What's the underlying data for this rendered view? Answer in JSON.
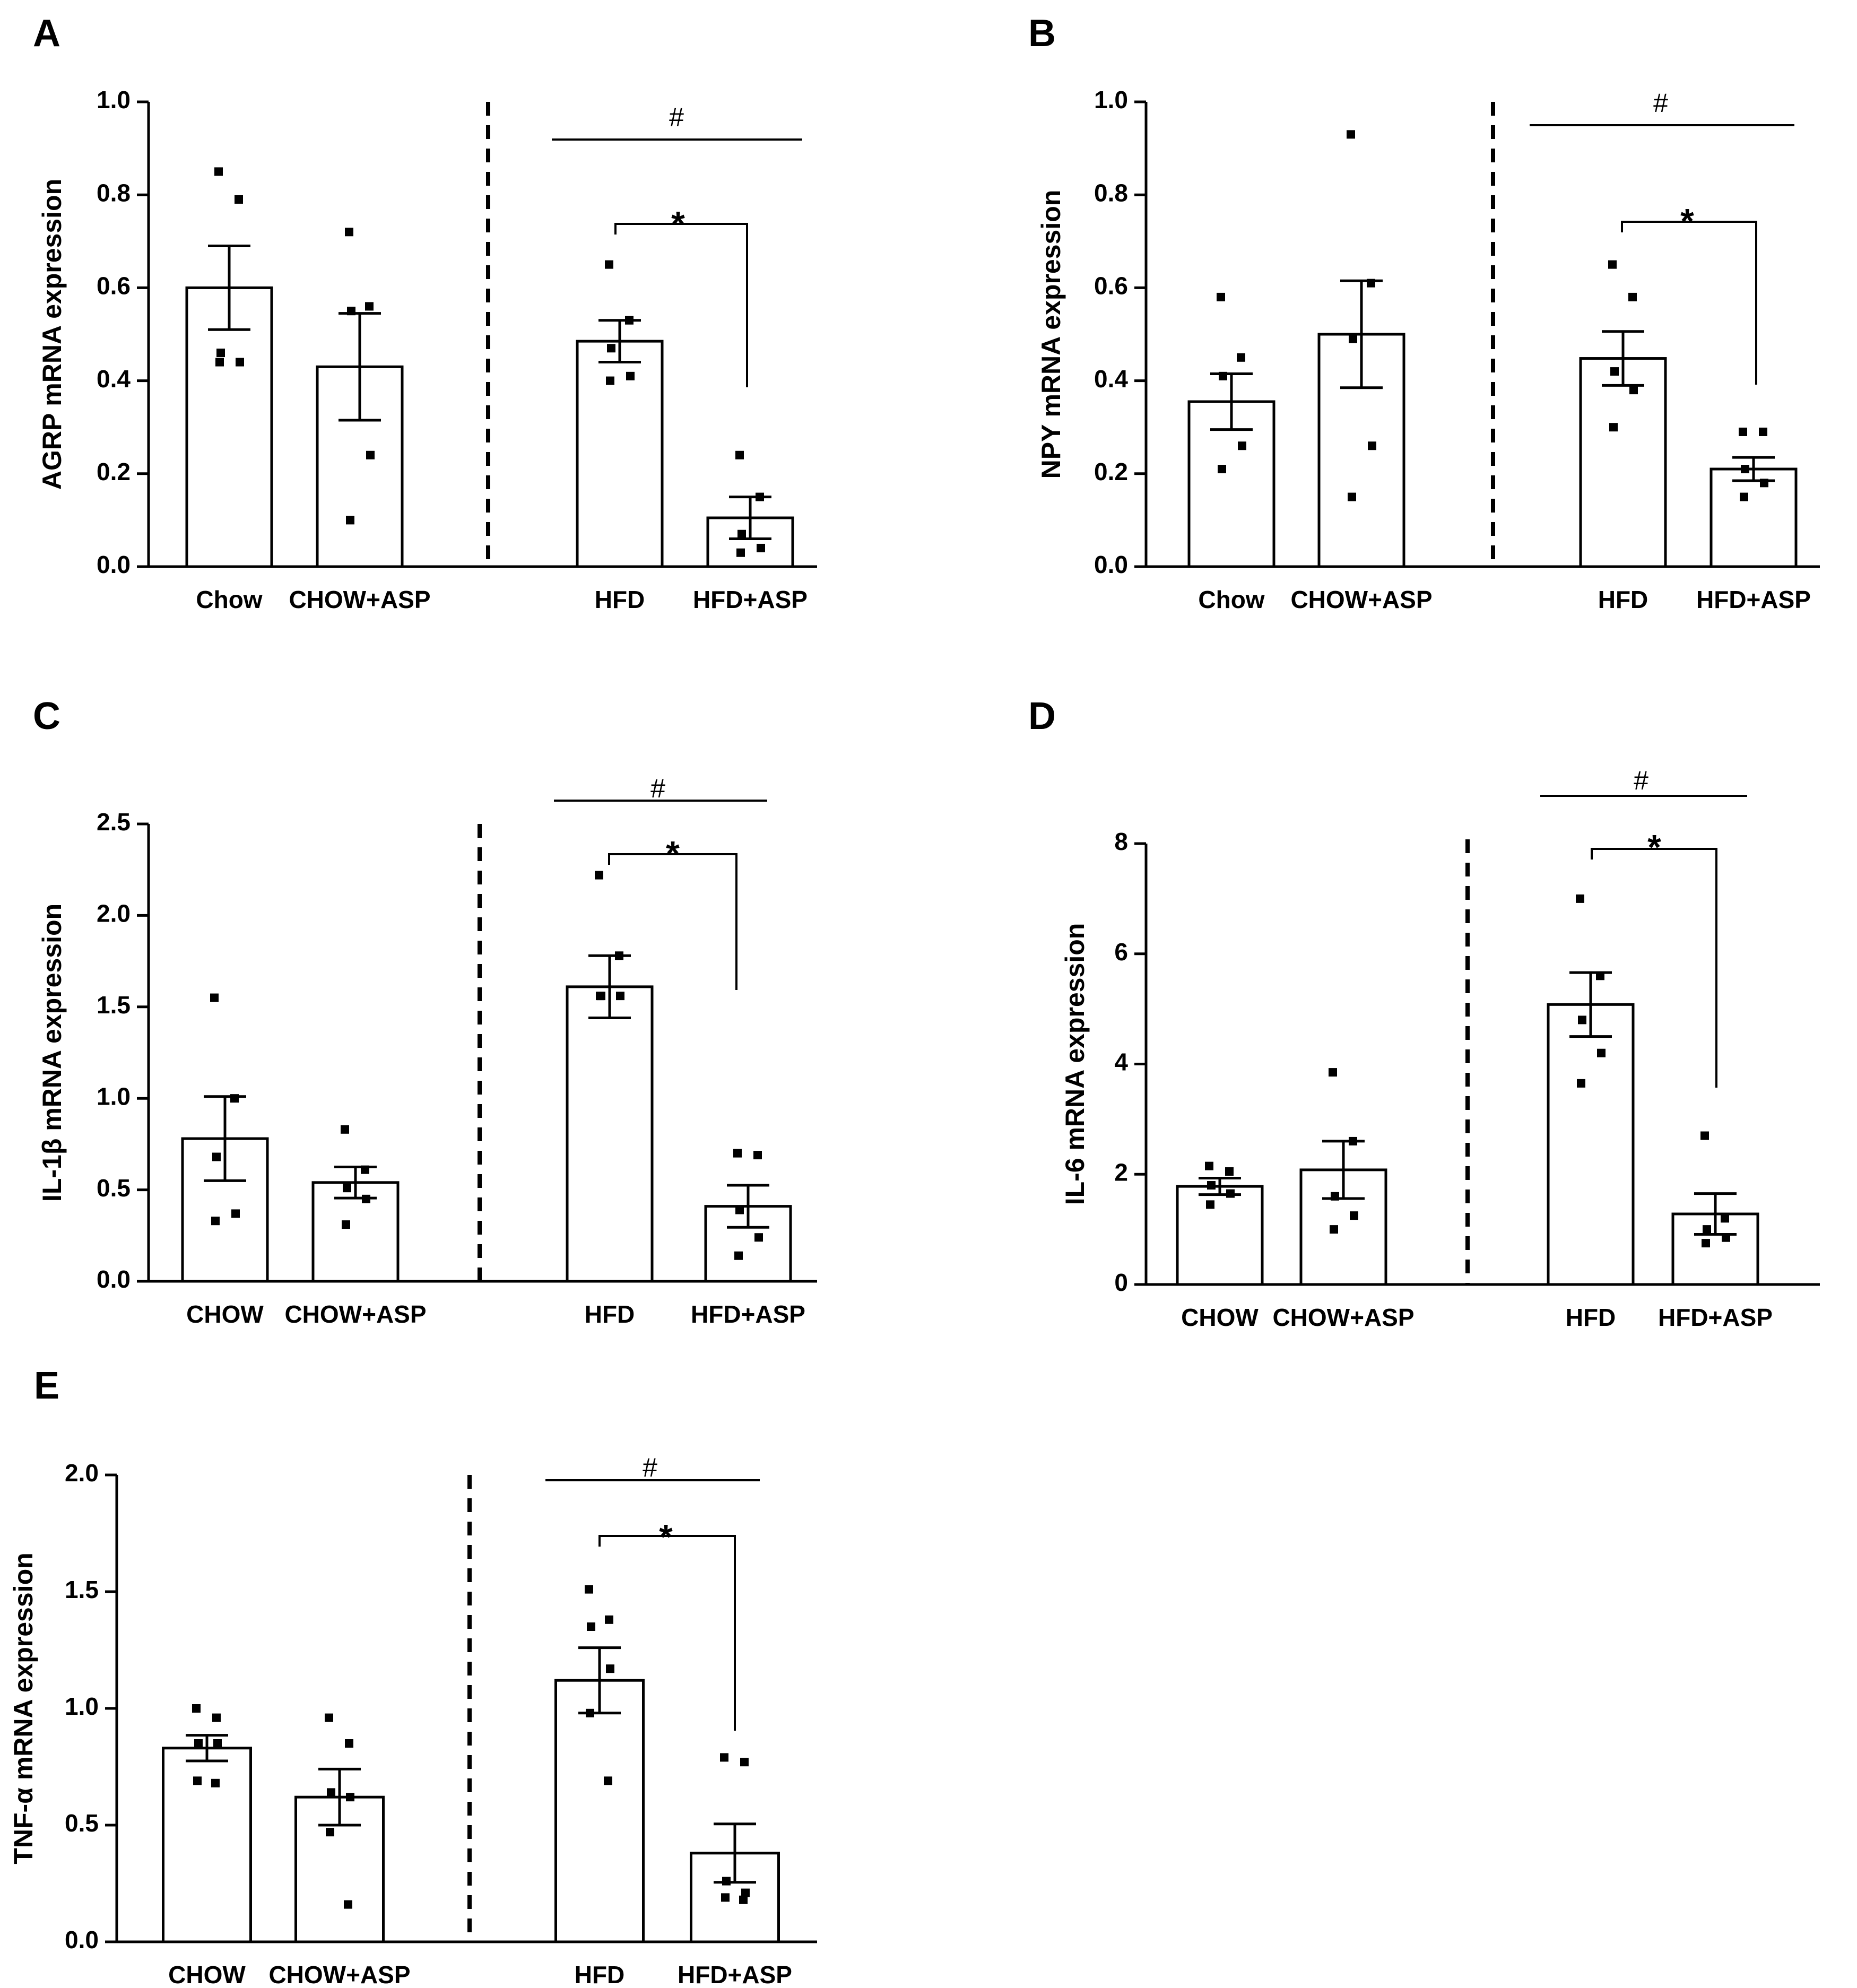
{
  "colors": {
    "ink": "#000000",
    "bar_fill": "#ffffff",
    "background": "#ffffff"
  },
  "chart_data": [
    {
      "panel": "A",
      "type": "bar",
      "categories": [
        "Chow",
        "CHOW+ASP",
        "HFD",
        "HFD+ASP"
      ],
      "values": [
        0.6,
        0.43,
        0.485,
        0.105
      ],
      "sem": [
        0.09,
        0.115,
        0.045,
        0.045
      ],
      "points": [
        [
          0.85,
          0.79,
          0.46,
          0.44,
          0.44
        ],
        [
          0.72,
          0.56,
          0.55,
          0.24,
          0.1
        ],
        [
          0.65,
          0.53,
          0.47,
          0.41,
          0.4
        ],
        [
          0.24,
          0.15,
          0.07,
          0.04,
          0.03
        ]
      ],
      "ylabel": "AGRP mRNA expression",
      "ylim": [
        0,
        1.0
      ],
      "yticks": [
        "0.0",
        "0.2",
        "0.4",
        "0.6",
        "0.8",
        "1.0"
      ],
      "annotations": {
        "hash": "#",
        "star": "*"
      }
    },
    {
      "panel": "B",
      "type": "bar",
      "categories": [
        "Chow",
        "CHOW+ASP",
        "HFD",
        "HFD+ASP"
      ],
      "values": [
        0.355,
        0.5,
        0.448,
        0.21
      ],
      "sem": [
        0.06,
        0.115,
        0.058,
        0.025
      ],
      "points": [
        [
          0.58,
          0.45,
          0.41,
          0.26,
          0.21
        ],
        [
          0.93,
          0.61,
          0.49,
          0.26,
          0.15
        ],
        [
          0.65,
          0.58,
          0.42,
          0.38,
          0.3
        ],
        [
          0.29,
          0.29,
          0.21,
          0.18,
          0.15
        ]
      ],
      "ylabel": "NPY mRNA expression",
      "ylim": [
        0,
        1.0
      ],
      "yticks": [
        "0.0",
        "0.2",
        "0.4",
        "0.6",
        "0.8",
        "1.0"
      ],
      "annotations": {
        "hash": "#",
        "star": "*"
      }
    },
    {
      "panel": "C",
      "type": "bar",
      "categories": [
        "CHOW",
        "CHOW+ASP",
        "HFD",
        "HFD+ASP"
      ],
      "values": [
        0.78,
        0.54,
        1.61,
        0.41
      ],
      "sem": [
        0.23,
        0.085,
        0.17,
        0.115
      ],
      "points": [
        [
          1.55,
          1.0,
          0.68,
          0.37,
          0.33
        ],
        [
          0.83,
          0.61,
          0.51,
          0.45,
          0.31
        ],
        [
          2.22,
          1.78,
          1.56,
          1.56,
          1.56
        ],
        [
          0.7,
          0.69,
          0.39,
          0.24,
          0.14
        ]
      ],
      "ylabel": "IL-1β mRNA expression",
      "ylim": [
        0,
        2.5
      ],
      "yticks": [
        "0.0",
        "0.5",
        "1.0",
        "1.5",
        "2.0",
        "2.5"
      ],
      "annotations": {
        "hash": "#",
        "star": "*"
      }
    },
    {
      "panel": "D",
      "type": "bar",
      "categories": [
        "CHOW",
        "CHOW+ASP",
        "HFD",
        "HFD+ASP"
      ],
      "values": [
        1.78,
        2.08,
        5.08,
        1.28
      ],
      "sem": [
        0.15,
        0.52,
        0.58,
        0.37
      ],
      "points": [
        [
          2.15,
          2.05,
          1.8,
          1.65,
          1.45
        ],
        [
          3.85,
          2.6,
          1.6,
          1.25,
          1.0
        ],
        [
          7.0,
          5.6,
          4.8,
          4.2,
          3.65
        ],
        [
          2.7,
          1.2,
          1.0,
          0.85,
          0.75
        ]
      ],
      "ylabel": "IL-6 mRNA expression",
      "ylim": [
        0,
        8
      ],
      "yticks": [
        "0",
        "2",
        "4",
        "6",
        "8"
      ],
      "annotations": {
        "hash": "#",
        "star": "*"
      }
    },
    {
      "panel": "E",
      "type": "bar",
      "categories": [
        "CHOW",
        "CHOW+ASP",
        "HFD",
        "HFD+ASP"
      ],
      "values": [
        0.83,
        0.62,
        1.12,
        0.38
      ],
      "sem": [
        0.055,
        0.12,
        0.14,
        0.125
      ],
      "points": [
        [
          1.0,
          0.96,
          0.85,
          0.85,
          0.69,
          0.68
        ],
        [
          0.96,
          0.85,
          0.64,
          0.62,
          0.47,
          0.16
        ],
        [
          1.51,
          1.38,
          1.35,
          1.17,
          0.98,
          0.69
        ],
        [
          0.79,
          0.77,
          0.26,
          0.21,
          0.19,
          0.18
        ]
      ],
      "ylabel": "TNF-α mRNA expression",
      "ylim": [
        0,
        2.0
      ],
      "yticks": [
        "0.0",
        "0.5",
        "1.0",
        "1.5",
        "2.0"
      ],
      "annotations": {
        "hash": "#",
        "star": "*"
      }
    }
  ]
}
